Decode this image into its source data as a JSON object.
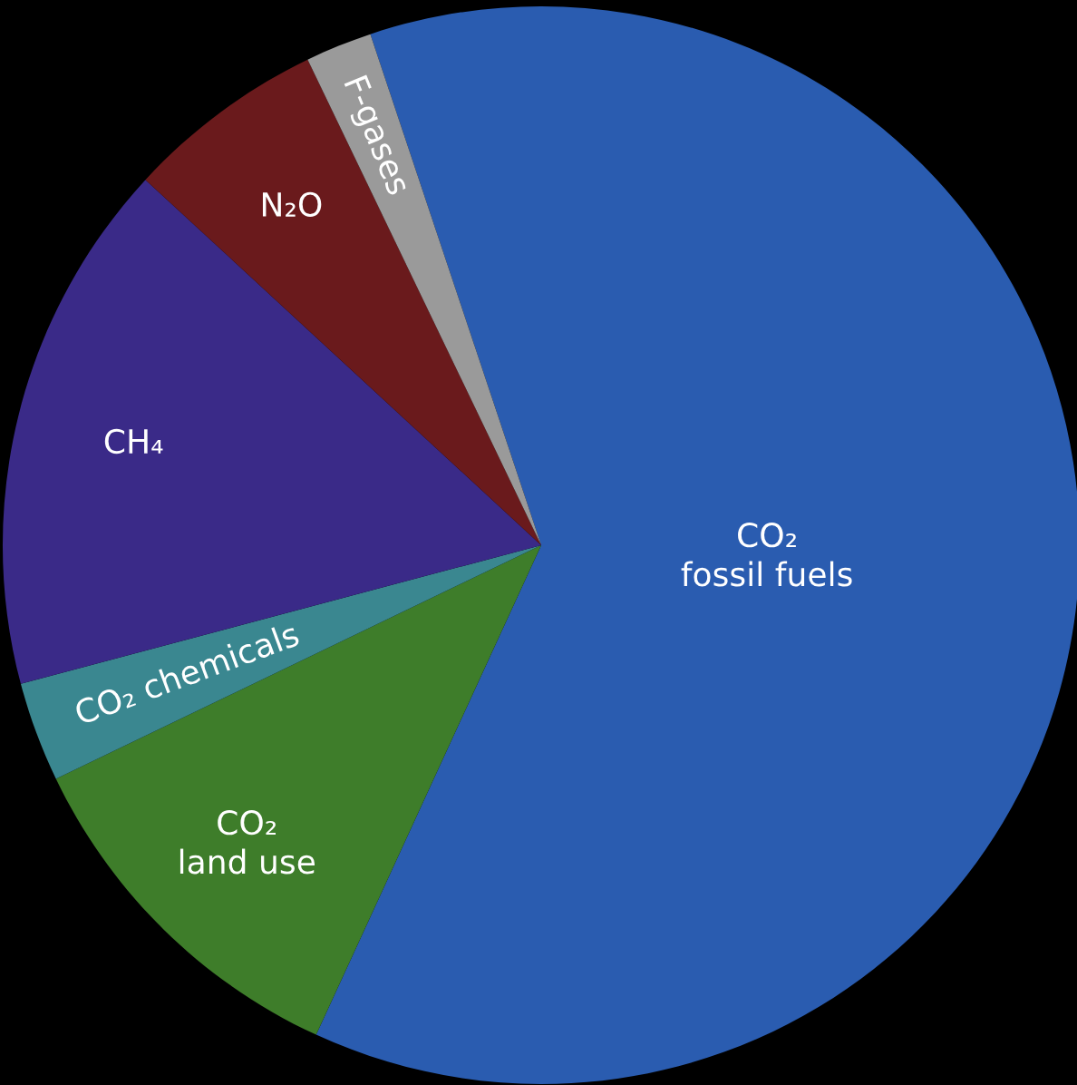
{
  "chart_data": {
    "type": "pie",
    "categories": [
      "CO₂\nfossil fuels",
      "CO₂\nland use",
      "CO₂ chemicals",
      "CH₄",
      "N₂O",
      "F-gases"
    ],
    "values": [
      62,
      11,
      3,
      16,
      6,
      2
    ],
    "colors": [
      "#2a5cb0",
      "#3e7d2a",
      "#3a8790",
      "#3a2a88",
      "#6a1a1c",
      "#9a9a9a"
    ]
  }
}
